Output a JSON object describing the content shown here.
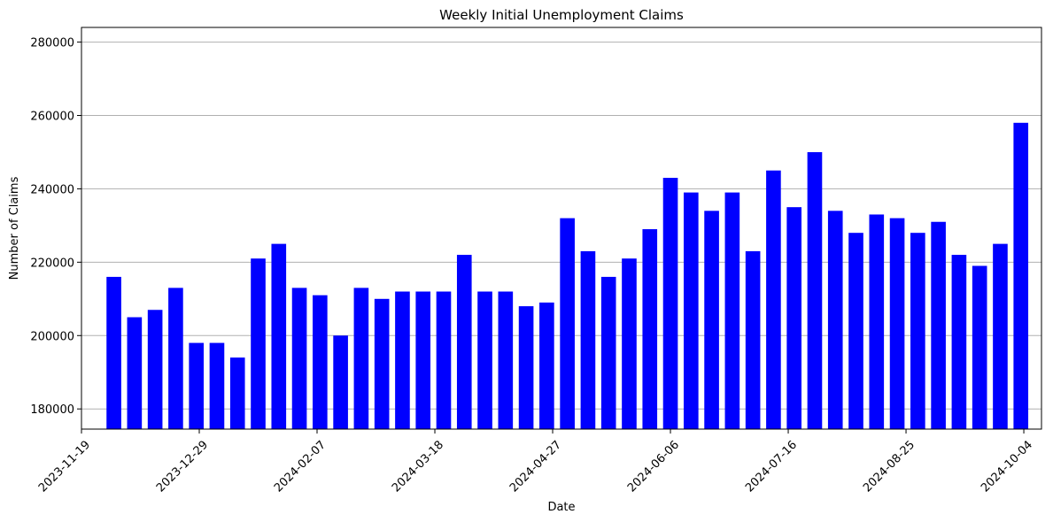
{
  "chart_data": {
    "type": "bar",
    "title": "Weekly Initial Unemployment Claims",
    "xlabel": "Date",
    "ylabel": "Number of Claims",
    "bar_color": "#0000ff",
    "grid": "y-major",
    "ylim": [
      174500,
      284000
    ],
    "xlim": [
      "2023-11-19",
      "2024-10-10"
    ],
    "yticks": [
      180000,
      200000,
      220000,
      240000,
      260000,
      280000
    ],
    "xticks": [
      "2023-11-19",
      "2023-12-29",
      "2024-02-07",
      "2024-03-18",
      "2024-04-27",
      "2024-06-06",
      "2024-07-16",
      "2024-08-25",
      "2024-10-04"
    ],
    "dates": [
      "2023-11-30",
      "2023-12-07",
      "2023-12-14",
      "2023-12-21",
      "2023-12-28",
      "2024-01-04",
      "2024-01-11",
      "2024-01-18",
      "2024-01-25",
      "2024-02-01",
      "2024-02-08",
      "2024-02-15",
      "2024-02-22",
      "2024-02-29",
      "2024-03-07",
      "2024-03-14",
      "2024-03-21",
      "2024-03-28",
      "2024-04-04",
      "2024-04-11",
      "2024-04-18",
      "2024-04-25",
      "2024-05-02",
      "2024-05-09",
      "2024-05-16",
      "2024-05-23",
      "2024-05-30",
      "2024-06-06",
      "2024-06-13",
      "2024-06-20",
      "2024-06-27",
      "2024-07-04",
      "2024-07-11",
      "2024-07-18",
      "2024-07-25",
      "2024-08-01",
      "2024-08-08",
      "2024-08-15",
      "2024-08-22",
      "2024-08-29",
      "2024-09-05",
      "2024-09-12",
      "2024-09-19",
      "2024-09-26",
      "2024-10-03"
    ],
    "values": [
      216000,
      205000,
      207000,
      213000,
      198000,
      198000,
      194000,
      221000,
      225000,
      213000,
      211000,
      200000,
      213000,
      210000,
      212000,
      212000,
      212000,
      222000,
      212000,
      212000,
      208000,
      209000,
      232000,
      223000,
      216000,
      221000,
      229000,
      243000,
      239000,
      234000,
      239000,
      223000,
      245000,
      235000,
      250000,
      234000,
      228000,
      233000,
      232000,
      228000,
      231000,
      222000,
      219000,
      225000,
      258000
    ]
  }
}
